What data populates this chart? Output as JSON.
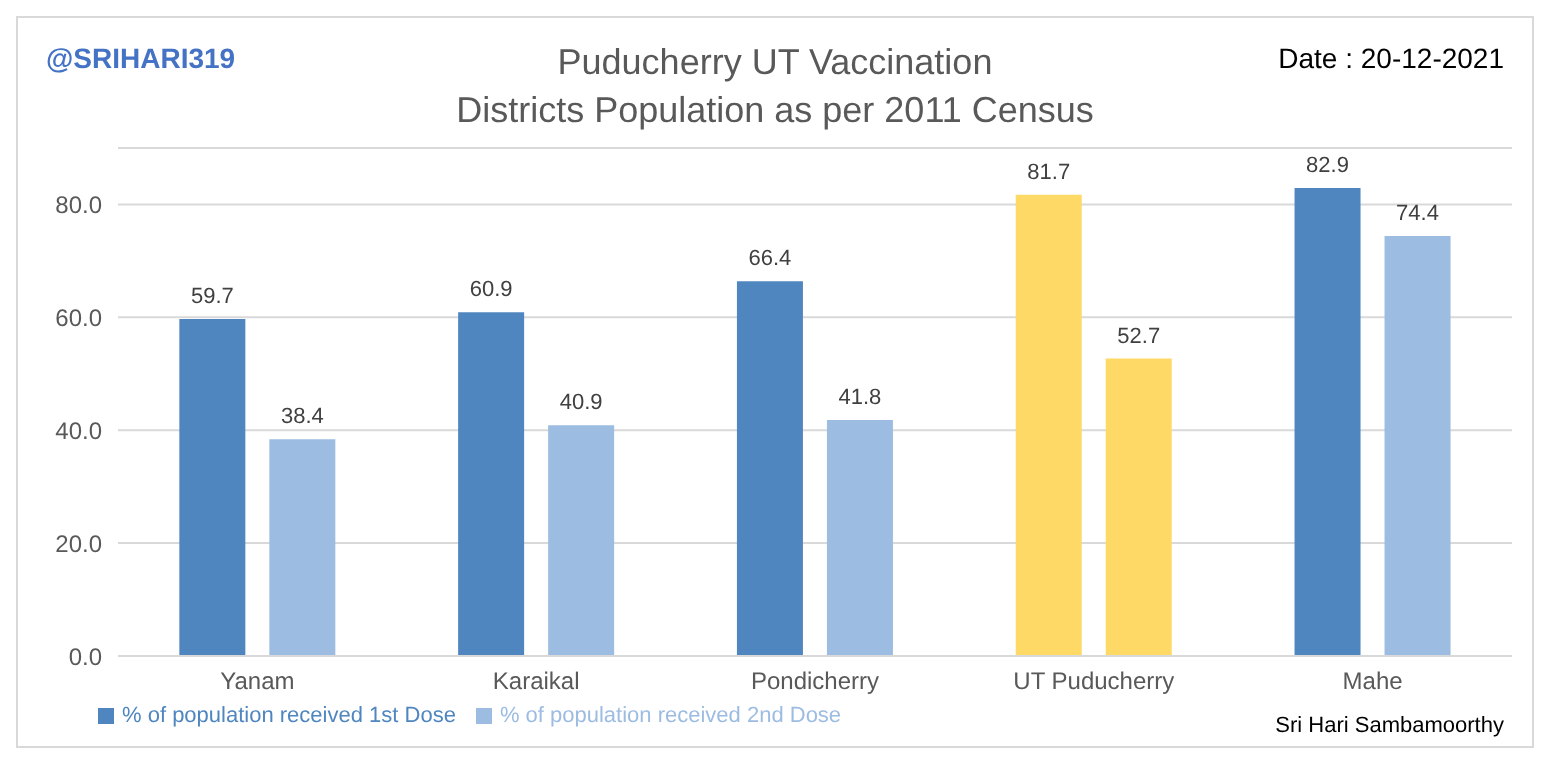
{
  "chart_data": {
    "type": "bar",
    "title": "Puducherry UT Vaccination",
    "subtitle": "Districts Population as per 2011 Census",
    "categories": [
      "Yanam",
      "Karaikal",
      "Pondicherry",
      "UT Puducherry",
      "Mahe"
    ],
    "series": [
      {
        "name": "% of population received 1st Dose",
        "color": "#4f86bf",
        "colors": [
          "#4f86bf",
          "#4f86bf",
          "#4f86bf",
          "#ffd966",
          "#4f86bf"
        ],
        "values": [
          59.7,
          60.9,
          66.4,
          81.7,
          82.9
        ]
      },
      {
        "name": "% of population received 2nd Dose",
        "color": "#9dbce2",
        "colors": [
          "#9dbce2",
          "#9dbce2",
          "#9dbce2",
          "#ffd966",
          "#9dbce2"
        ],
        "values": [
          38.4,
          40.9,
          41.8,
          52.7,
          74.4
        ]
      }
    ],
    "ylim": [
      0,
      90
    ],
    "yticks": [
      {
        "value": 0,
        "label": "0.0"
      },
      {
        "value": 20,
        "label": "20.0"
      },
      {
        "value": 40,
        "label": "40.0"
      },
      {
        "value": 60,
        "label": "60.0"
      },
      {
        "value": 80,
        "label": "80.0"
      }
    ],
    "grid": "y",
    "legend": "bottom left",
    "data_labels": true,
    "annotations": [
      "@SRIHARI319",
      "Date : 20-12-2021",
      "Sri Hari Sambamoorthy"
    ]
  }
}
